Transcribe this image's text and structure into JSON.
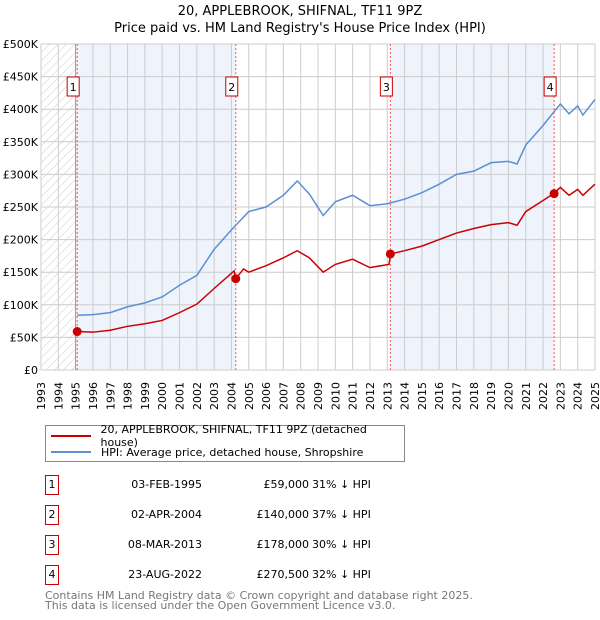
{
  "chart_data": {
    "type": "line",
    "title": "20, APPLEBROOK, SHIFNAL, TF11 9PZ",
    "subtitle": "Price paid vs. HM Land Registry's House Price Index (HPI)",
    "xlim": [
      1993,
      2025
    ],
    "ylim": [
      0,
      500000
    ],
    "x_ticks": [
      "1993",
      "1994",
      "1995",
      "1996",
      "1997",
      "1998",
      "1999",
      "2000",
      "2001",
      "2002",
      "2003",
      "2004",
      "2005",
      "2006",
      "2007",
      "2008",
      "2009",
      "2010",
      "2011",
      "2012",
      "2013",
      "2014",
      "2015",
      "2016",
      "2017",
      "2018",
      "2019",
      "2020",
      "2021",
      "2022",
      "2023",
      "2024",
      "2025"
    ],
    "y_ticks": [
      {
        "v": 0,
        "label": "£0"
      },
      {
        "v": 50000,
        "label": "£50K"
      },
      {
        "v": 100000,
        "label": "£100K"
      },
      {
        "v": 150000,
        "label": "£150K"
      },
      {
        "v": 200000,
        "label": "£200K"
      },
      {
        "v": 250000,
        "label": "£250K"
      },
      {
        "v": 300000,
        "label": "£300K"
      },
      {
        "v": 350000,
        "label": "£350K"
      },
      {
        "v": 400000,
        "label": "£400K"
      },
      {
        "v": 450000,
        "label": "£450K"
      },
      {
        "v": 500000,
        "label": "£500K"
      }
    ],
    "grid": true,
    "series": [
      {
        "name": "20, APPLEBROOK, SHIFNAL, TF11 9PZ (detached house)",
        "color": "#cc0000",
        "x": [
          1995.1,
          1996,
          1997,
          1998,
          1999,
          2000,
          2001,
          2002,
          2003,
          2004.15,
          2004.25,
          2004.7,
          2005,
          2006,
          2007,
          2007.8,
          2008.5,
          2009.3,
          2010,
          2011,
          2012,
          2013.1,
          2013.2,
          2014,
          2015,
          2016,
          2017,
          2018,
          2019,
          2020,
          2020.5,
          2021,
          2022,
          2022.6,
          2023,
          2023.5,
          2024,
          2024.3,
          2025
        ],
        "y": [
          59000,
          58000,
          61000,
          67000,
          71000,
          76000,
          88000,
          101000,
          125000,
          152000,
          140000,
          155000,
          150000,
          160000,
          172000,
          183000,
          172000,
          150000,
          162000,
          170000,
          157000,
          162000,
          178000,
          183000,
          190000,
          200000,
          210000,
          217000,
          223000,
          226000,
          222000,
          243000,
          260000,
          270500,
          280000,
          268000,
          277000,
          268000,
          285000
        ]
      },
      {
        "name": "HPI: Average price, detached house, Shropshire",
        "color": "#5b8fd4",
        "x": [
          1995.1,
          1996,
          1997,
          1998,
          1999,
          2000,
          2001,
          2002,
          2003,
          2004,
          2004.25,
          2005,
          2006,
          2007,
          2007.8,
          2008.5,
          2009.3,
          2010,
          2011,
          2012,
          2013,
          2014,
          2015,
          2016,
          2017,
          2018,
          2019,
          2020,
          2020.5,
          2021,
          2022,
          2022.6,
          2023,
          2023.5,
          2024,
          2024.3,
          2025
        ],
        "y": [
          84000,
          85000,
          88000,
          97000,
          103000,
          112000,
          130000,
          145000,
          185000,
          215000,
          222000,
          243000,
          250000,
          268000,
          290000,
          270000,
          237000,
          258000,
          268000,
          252000,
          255000,
          262000,
          272000,
          285000,
          300000,
          305000,
          318000,
          320000,
          316000,
          345000,
          375000,
          395000,
          408000,
          393000,
          405000,
          391000,
          415000
        ]
      }
    ],
    "sales": [
      {
        "n": "1",
        "x": 1995.09,
        "y": 59000,
        "date": "03-FEB-1995",
        "price": "£59,000",
        "hpi": "31% ↓ HPI"
      },
      {
        "n": "2",
        "x": 2004.25,
        "y": 140000,
        "date": "02-APR-2004",
        "price": "£140,000",
        "hpi": "37% ↓ HPI"
      },
      {
        "n": "3",
        "x": 2013.18,
        "y": 178000,
        "date": "08-MAR-2013",
        "price": "£178,000",
        "hpi": "30% ↓ HPI"
      },
      {
        "n": "4",
        "x": 2022.64,
        "y": 270500,
        "date": "23-AUG-2022",
        "price": "£270,500",
        "hpi": "32% ↓ HPI"
      }
    ],
    "legend_placement": "below"
  },
  "footer": {
    "line1": "Contains HM Land Registry data © Crown copyright and database right 2025.",
    "line2": "This data is licensed under the Open Government Licence v3.0."
  }
}
